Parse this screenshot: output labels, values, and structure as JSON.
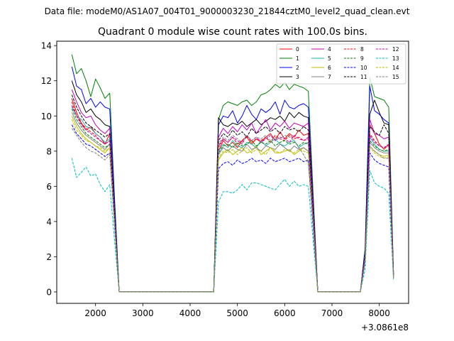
{
  "figure": {
    "suptitle": "Data file: modeM0/AS1A07_004T01_9000003230_21844cztM0_level2_quad_clean.evt",
    "title": "Quadrant 0 module wise count rates with 100.0s bins.",
    "offset_label": "+3.0861e8"
  },
  "chart_data": {
    "type": "line",
    "title": "Quadrant 0 module wise count rates with 100.0s bins.",
    "xlabel": "",
    "ylabel": "",
    "x_offset": 308610000,
    "xlim": [
      1180,
      8620
    ],
    "ylim": [
      -0.65,
      14.25
    ],
    "xticks": [
      2000,
      3000,
      4000,
      5000,
      6000,
      7000,
      8000
    ],
    "yticks": [
      0,
      2,
      4,
      6,
      8,
      10,
      12,
      14
    ],
    "legend_location": "top-right",
    "legend_columns": 4,
    "x": [
      1500,
      1600,
      1700,
      1800,
      1900,
      2000,
      2100,
      2200,
      2300,
      2400,
      2500,
      2600,
      2700,
      2800,
      2900,
      3000,
      3100,
      3200,
      3300,
      3400,
      3500,
      3600,
      3700,
      3800,
      3900,
      4000,
      4100,
      4200,
      4300,
      4400,
      4500,
      4600,
      4700,
      4800,
      4900,
      5000,
      5100,
      5200,
      5300,
      5400,
      5500,
      5600,
      5700,
      5800,
      5900,
      6000,
      6100,
      6200,
      6300,
      6400,
      6500,
      6600,
      6700,
      6800,
      6900,
      7000,
      7100,
      7200,
      7300,
      7400,
      7500,
      7600,
      7700,
      7800,
      7900,
      8000,
      8100,
      8200,
      8300
    ],
    "series": [
      {
        "name": "0",
        "color": "#ff0000",
        "dash": "solid",
        "values": [
          11.0,
          10.2,
          9.6,
          9.2,
          9.4,
          9.0,
          8.8,
          8.4,
          9.0,
          4.5,
          0,
          0,
          0,
          0,
          0,
          0,
          0,
          0,
          0,
          0,
          0,
          0,
          0,
          0,
          0,
          0,
          0,
          0,
          0,
          0,
          0,
          8.0,
          8.6,
          8.3,
          8.5,
          8.2,
          8.6,
          8.8,
          8.4,
          8.7,
          8.5,
          8.8,
          9.0,
          8.6,
          9.1,
          8.7,
          9.0,
          8.8,
          9.2,
          8.9,
          9.0,
          4.5,
          0,
          0,
          0,
          0,
          0,
          0,
          0,
          0,
          0,
          0,
          2.0,
          9.5,
          9.0,
          8.4,
          8.1,
          8.4,
          0.9
        ]
      },
      {
        "name": "1",
        "color": "#008000",
        "dash": "solid",
        "values": [
          13.5,
          12.4,
          12.7,
          12.0,
          11.1,
          12.1,
          11.6,
          11.0,
          11.3,
          5.5,
          0,
          0,
          0,
          0,
          0,
          0,
          0,
          0,
          0,
          0,
          0,
          0,
          0,
          0,
          0,
          0,
          0,
          0,
          0,
          0,
          0,
          9.8,
          10.6,
          10.8,
          10.7,
          10.6,
          10.8,
          10.9,
          10.6,
          10.8,
          11.2,
          11.3,
          11.5,
          11.8,
          11.6,
          11.9,
          11.5,
          11.8,
          11.7,
          11.6,
          11.4,
          5.7,
          0,
          0,
          0,
          0,
          0,
          0,
          0,
          0,
          0,
          0,
          2.5,
          12.2,
          11.1,
          11.0,
          10.9,
          10.5,
          1.1
        ]
      },
      {
        "name": "2",
        "color": "#0000ff",
        "dash": "solid",
        "values": [
          12.8,
          11.7,
          11.5,
          10.7,
          11.0,
          10.5,
          10.8,
          10.5,
          10.4,
          5.2,
          0,
          0,
          0,
          0,
          0,
          0,
          0,
          0,
          0,
          0,
          0,
          0,
          0,
          0,
          0,
          0,
          0,
          0,
          0,
          0,
          0,
          9.5,
          10.0,
          9.9,
          10.3,
          9.6,
          10.0,
          10.6,
          10.1,
          9.8,
          10.4,
          10.2,
          10.4,
          10.8,
          10.1,
          10.9,
          10.5,
          10.4,
          10.6,
          10.7,
          10.5,
          5.2,
          0,
          0,
          0,
          0,
          0,
          0,
          0,
          0,
          0,
          0,
          2.4,
          11.7,
          10.3,
          10.1,
          9.8,
          9.6,
          1.0
        ]
      },
      {
        "name": "3",
        "color": "#000000",
        "dash": "solid",
        "values": [
          12.0,
          11.2,
          10.8,
          10.2,
          10.4,
          10.0,
          9.8,
          9.5,
          9.4,
          4.7,
          0,
          0,
          0,
          0,
          0,
          0,
          0,
          0,
          0,
          0,
          0,
          0,
          0,
          0,
          0,
          0,
          0,
          0,
          0,
          0,
          0,
          9.9,
          9.5,
          9.4,
          9.6,
          9.5,
          9.7,
          9.4,
          9.6,
          9.8,
          9.5,
          9.7,
          9.9,
          9.8,
          10.0,
          9.7,
          10.2,
          9.9,
          10.2,
          10.0,
          9.9,
          5.0,
          0,
          0,
          0,
          0,
          0,
          0,
          0,
          0,
          0,
          0,
          2.2,
          10.1,
          10.9,
          10.2,
          9.6,
          9.5,
          1.0
        ]
      },
      {
        "name": "4",
        "color": "#bf00bf",
        "dash": "solid",
        "values": [
          11.5,
          10.8,
          10.2,
          9.9,
          10.0,
          9.5,
          9.2,
          9.0,
          9.3,
          4.6,
          0,
          0,
          0,
          0,
          0,
          0,
          0,
          0,
          0,
          0,
          0,
          0,
          0,
          0,
          0,
          0,
          0,
          0,
          0,
          0,
          0,
          8.8,
          9.3,
          9.0,
          9.4,
          9.1,
          9.5,
          9.2,
          9.6,
          9.0,
          9.4,
          9.8,
          9.2,
          9.6,
          9.4,
          9.7,
          9.3,
          9.6,
          9.5,
          9.4,
          9.6,
          4.8,
          0,
          0,
          0,
          0,
          0,
          0,
          0,
          0,
          0,
          0,
          2.1,
          9.8,
          9.0,
          8.9,
          8.7,
          8.8,
          0.9
        ]
      },
      {
        "name": "5",
        "color": "#20b2aa",
        "dash": "solid",
        "values": [
          10.5,
          10.0,
          9.8,
          9.4,
          9.3,
          9.0,
          8.8,
          8.5,
          8.7,
          4.3,
          0,
          0,
          0,
          0,
          0,
          0,
          0,
          0,
          0,
          0,
          0,
          0,
          0,
          0,
          0,
          0,
          0,
          0,
          0,
          0,
          0,
          8.0,
          8.4,
          8.2,
          8.6,
          8.3,
          8.2,
          8.5,
          8.4,
          8.2,
          8.6,
          8.3,
          8.5,
          8.7,
          8.4,
          8.3,
          8.5,
          8.6,
          8.2,
          8.4,
          8.5,
          4.2,
          0,
          0,
          0,
          0,
          0,
          0,
          0,
          0,
          0,
          0,
          1.9,
          8.8,
          8.4,
          8.1,
          8.0,
          8.0,
          0.8
        ]
      },
      {
        "name": "6",
        "color": "#bfbf00",
        "dash": "solid",
        "values": [
          10.0,
          9.4,
          9.0,
          8.7,
          8.5,
          8.3,
          8.1,
          7.9,
          8.2,
          4.1,
          0,
          0,
          0,
          0,
          0,
          0,
          0,
          0,
          0,
          0,
          0,
          0,
          0,
          0,
          0,
          0,
          0,
          0,
          0,
          0,
          0,
          7.5,
          7.9,
          8.1,
          7.8,
          8.0,
          8.2,
          7.9,
          8.0,
          8.3,
          7.8,
          8.0,
          8.2,
          7.9,
          7.9,
          8.0,
          8.1,
          7.8,
          8.0,
          8.2,
          8.0,
          4.0,
          0,
          0,
          0,
          0,
          0,
          0,
          0,
          0,
          0,
          0,
          1.8,
          8.3,
          8.0,
          7.8,
          7.7,
          7.8,
          0.8
        ]
      },
      {
        "name": "7",
        "color": "#808080",
        "dash": "solid",
        "values": [
          10.2,
          9.6,
          9.2,
          8.9,
          8.7,
          8.5,
          8.3,
          8.1,
          8.4,
          4.2,
          0,
          0,
          0,
          0,
          0,
          0,
          0,
          0,
          0,
          0,
          0,
          0,
          0,
          0,
          0,
          0,
          0,
          0,
          0,
          0,
          0,
          7.8,
          8.2,
          8.0,
          8.3,
          8.1,
          8.0,
          8.4,
          8.1,
          8.2,
          8.0,
          8.3,
          8.2,
          8.1,
          8.4,
          8.2,
          8.0,
          8.3,
          8.1,
          8.2,
          8.0,
          4.1,
          0,
          0,
          0,
          0,
          0,
          0,
          0,
          0,
          0,
          0,
          1.9,
          8.5,
          8.2,
          8.0,
          7.9,
          7.9,
          0.8
        ]
      },
      {
        "name": "8",
        "color": "#ff0000",
        "dash": "dashed",
        "values": [
          10.8,
          10.0,
          9.6,
          9.3,
          9.1,
          8.9,
          8.6,
          8.4,
          8.6,
          4.3,
          0,
          0,
          0,
          0,
          0,
          0,
          0,
          0,
          0,
          0,
          0,
          0,
          0,
          0,
          0,
          0,
          0,
          0,
          0,
          0,
          0,
          8.2,
          8.7,
          8.5,
          8.8,
          8.4,
          8.6,
          8.9,
          8.5,
          8.7,
          8.6,
          8.8,
          8.5,
          8.9,
          8.7,
          8.6,
          8.9,
          8.7,
          8.8,
          8.6,
          8.7,
          4.4,
          0,
          0,
          0,
          0,
          0,
          0,
          0,
          0,
          0,
          0,
          2.0,
          9.0,
          8.6,
          8.3,
          8.2,
          8.3,
          0.9
        ]
      },
      {
        "name": "9",
        "color": "#008000",
        "dash": "dashed",
        "values": [
          10.4,
          9.8,
          9.4,
          9.0,
          8.8,
          8.6,
          8.4,
          8.2,
          8.4,
          4.2,
          0,
          0,
          0,
          0,
          0,
          0,
          0,
          0,
          0,
          0,
          0,
          0,
          0,
          0,
          0,
          0,
          0,
          0,
          0,
          0,
          0,
          7.9,
          8.3,
          8.4,
          8.2,
          8.5,
          8.3,
          8.4,
          8.6,
          8.3,
          8.5,
          8.4,
          8.6,
          8.3,
          8.5,
          8.6,
          8.4,
          8.5,
          8.3,
          8.5,
          8.4,
          4.2,
          0,
          0,
          0,
          0,
          0,
          0,
          0,
          0,
          0,
          0,
          1.9,
          8.6,
          8.3,
          8.1,
          8.0,
          8.1,
          0.9
        ]
      },
      {
        "name": "10",
        "color": "#0000ff",
        "dash": "dashed",
        "values": [
          9.5,
          9.0,
          8.7,
          8.4,
          8.3,
          8.1,
          7.9,
          7.7,
          7.9,
          3.9,
          0,
          0,
          0,
          0,
          0,
          0,
          0,
          0,
          0,
          0,
          0,
          0,
          0,
          0,
          0,
          0,
          0,
          0,
          0,
          0,
          0,
          7.0,
          7.3,
          7.4,
          7.2,
          7.5,
          7.3,
          7.4,
          7.6,
          7.4,
          7.5,
          7.3,
          7.6,
          7.4,
          7.5,
          7.6,
          7.4,
          7.5,
          7.6,
          7.4,
          7.5,
          3.7,
          0,
          0,
          0,
          0,
          0,
          0,
          0,
          0,
          0,
          0,
          1.7,
          7.9,
          7.5,
          7.3,
          7.2,
          7.1,
          0.8
        ]
      },
      {
        "name": "11",
        "color": "#000000",
        "dash": "dashed",
        "values": [
          11.2,
          10.5,
          10.0,
          9.6,
          9.4,
          9.2,
          9.0,
          8.8,
          9.0,
          4.5,
          0,
          0,
          0,
          0,
          0,
          0,
          0,
          0,
          0,
          0,
          0,
          0,
          0,
          0,
          0,
          0,
          0,
          0,
          0,
          0,
          0,
          8.6,
          9.0,
          8.8,
          9.2,
          8.9,
          9.1,
          8.8,
          9.3,
          9.0,
          9.2,
          9.4,
          9.1,
          9.3,
          9.0,
          9.4,
          9.2,
          9.3,
          9.1,
          9.4,
          9.2,
          4.6,
          0,
          0,
          0,
          0,
          0,
          0,
          0,
          0,
          0,
          0,
          2.1,
          9.4,
          9.1,
          8.9,
          9.5,
          9.0,
          1.0
        ]
      },
      {
        "name": "12",
        "color": "#bf00bf",
        "dash": "dashed",
        "values": [
          10.6,
          10.0,
          9.5,
          9.2,
          9.0,
          8.8,
          8.6,
          8.4,
          8.6,
          4.3,
          0,
          0,
          0,
          0,
          0,
          0,
          0,
          0,
          0,
          0,
          0,
          0,
          0,
          0,
          0,
          0,
          0,
          0,
          0,
          0,
          0,
          8.3,
          8.7,
          8.5,
          8.8,
          8.6,
          8.4,
          8.9,
          8.6,
          8.8,
          8.5,
          8.7,
          8.9,
          8.6,
          8.8,
          8.7,
          8.5,
          8.9,
          8.7,
          8.6,
          8.8,
          4.4,
          0,
          0,
          0,
          0,
          0,
          0,
          0,
          0,
          0,
          0,
          2.0,
          8.9,
          8.5,
          8.3,
          8.2,
          8.4,
          0.9
        ]
      },
      {
        "name": "13",
        "color": "#00bfbf",
        "dash": "dashed",
        "values": [
          7.6,
          6.5,
          6.8,
          7.1,
          6.6,
          6.7,
          6.1,
          5.7,
          6.1,
          3.0,
          0,
          0,
          0,
          0,
          0,
          0,
          0,
          0,
          0,
          0,
          0,
          0,
          0,
          0,
          0,
          0,
          0,
          0,
          0,
          0,
          0,
          5.1,
          5.7,
          5.7,
          5.6,
          5.8,
          6.1,
          5.8,
          6.2,
          6.2,
          6.1,
          6.0,
          5.9,
          5.8,
          6.1,
          6.4,
          6.0,
          6.3,
          6.0,
          6.1,
          6.0,
          3.0,
          0,
          0,
          0,
          0,
          0,
          0,
          0,
          0,
          0,
          0,
          1.3,
          6.9,
          6.2,
          6.0,
          5.9,
          5.6,
          0.7
        ]
      },
      {
        "name": "14",
        "color": "#bfbf00",
        "dash": "dashed",
        "values": [
          9.8,
          9.2,
          8.9,
          8.6,
          8.5,
          8.3,
          8.2,
          8.0,
          8.2,
          4.1,
          0,
          0,
          0,
          0,
          0,
          0,
          0,
          0,
          0,
          0,
          0,
          0,
          0,
          0,
          0,
          0,
          0,
          0,
          0,
          0,
          0,
          7.6,
          8.0,
          7.9,
          8.1,
          7.8,
          8.0,
          8.2,
          7.9,
          8.1,
          8.0,
          7.8,
          8.2,
          8.0,
          7.9,
          8.1,
          8.0,
          7.9,
          8.1,
          8.0,
          7.9,
          4.0,
          0,
          0,
          0,
          0,
          0,
          0,
          0,
          0,
          0,
          0,
          1.8,
          8.2,
          7.9,
          7.7,
          7.6,
          7.7,
          0.8
        ]
      },
      {
        "name": "15",
        "color": "#808080",
        "dash": "dashed",
        "values": [
          9.3,
          8.9,
          8.5,
          8.2,
          8.0,
          7.9,
          7.7,
          7.5,
          7.8,
          3.9,
          0,
          0,
          0,
          0,
          0,
          0,
          0,
          0,
          0,
          0,
          0,
          0,
          0,
          0,
          0,
          0,
          0,
          0,
          0,
          0,
          0,
          8.4,
          8.8,
          8.6,
          8.9,
          8.7,
          8.5,
          8.9,
          8.6,
          8.8,
          8.7,
          8.9,
          8.6,
          8.8,
          8.7,
          8.9,
          8.8,
          8.6,
          8.2,
          7.8,
          7.3,
          4.0,
          0,
          0,
          0,
          0,
          0,
          0,
          0,
          0,
          0,
          0,
          1.8,
          8.3,
          8.0,
          7.8,
          7.6,
          7.6,
          0.8
        ]
      }
    ]
  }
}
